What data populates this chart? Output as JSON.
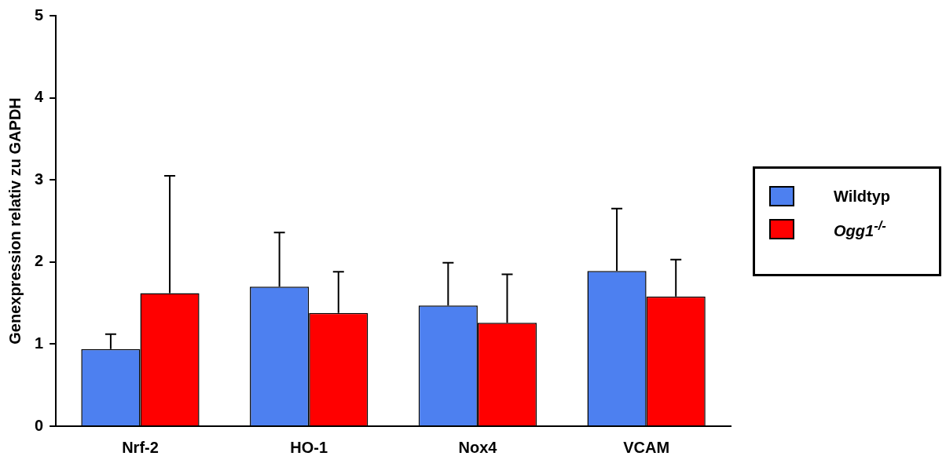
{
  "chart_data": {
    "type": "bar",
    "ylabel": "Genexpression relativ zu GAPDH",
    "categories": [
      "Nrf-2",
      "HO-1",
      "Nox4",
      "VCAM"
    ],
    "series": [
      {
        "name": "Wildtyp",
        "color": "#4d80f0",
        "values": [
          0.94,
          1.7,
          1.47,
          1.89
        ],
        "errors": [
          [
            0.94,
            1.12
          ],
          [
            1.7,
            2.36
          ],
          [
            1.47,
            1.99
          ],
          [
            1.89,
            2.65
          ]
        ]
      },
      {
        "name": "Ogg1$^{-/-}$",
        "color": "#ff0000",
        "values": [
          1.62,
          1.38,
          1.26,
          1.58
        ],
        "errors": [
          [
            1.62,
            3.05
          ],
          [
            1.38,
            1.88
          ],
          [
            1.26,
            1.85
          ],
          [
            1.58,
            2.03
          ]
        ]
      }
    ],
    "ylim": [
      0,
      5
    ],
    "yticks": [
      0,
      1,
      2,
      3,
      4,
      5
    ],
    "grid": false,
    "legend": "right"
  }
}
